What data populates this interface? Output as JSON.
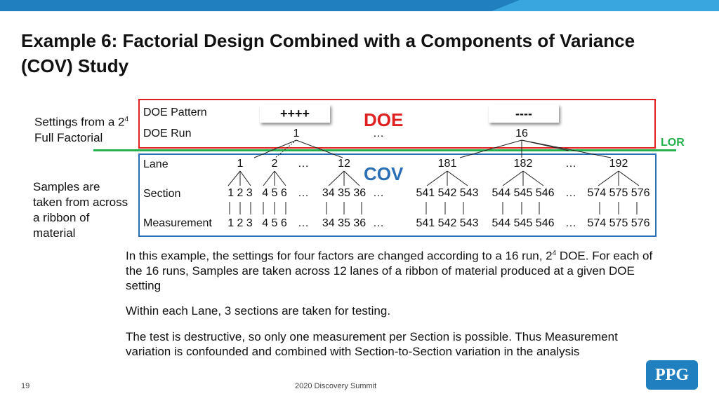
{
  "slide": {
    "title": "Example 6: Factorial Design Combined with a Components of Variance (COV) Study",
    "page_number": "19",
    "footer": "2020 Discovery Summit",
    "logo_text": "PPG"
  },
  "side_notes": {
    "settings_prefix": "Settings from a 2",
    "settings_exp": "4",
    "settings_suffix": " Full Factorial",
    "samples": "Samples are taken from across a ribbon of material"
  },
  "diagram": {
    "doe_label": "DOE",
    "cov_label": "COV",
    "lor_label": "LOR",
    "row_labels": {
      "pattern": "DOE Pattern",
      "run": "DOE Run",
      "lane": "Lane",
      "section": "Section",
      "measurement": "Measurement"
    },
    "patterns": [
      "++++",
      "----"
    ],
    "runs": [
      "1",
      "…",
      "16"
    ],
    "lanes": [
      "1",
      "2",
      "…",
      "12",
      "181",
      "182",
      "…",
      "192"
    ],
    "sections": [
      "1 2 3",
      "4 5 6",
      "…",
      "34 35 36",
      "…",
      "541 542 543",
      "544 545 546",
      "…",
      "574 575 576"
    ],
    "measurements": [
      "1 2 3",
      "4 5 6",
      "…",
      "34 35 36",
      "…",
      "541 542 543",
      "544 545 546",
      "…",
      "574 575 576"
    ]
  },
  "body": {
    "p1_prefix": "In this example, the settings for four factors are changed according to a 16 run, 2",
    "p1_exp": "4",
    "p1_suffix": " DOE. For each of the 16 runs, Samples are taken across 12 lanes of a ribbon of material produced at a given DOE setting",
    "p2": "Within each Lane, 3 sections are taken for testing.",
    "p3": "The test is destructive, so only one measurement per Section is possible.  Thus Measurement variation is confounded and combined with Section-to-Section variation in the analysis"
  },
  "colors": {
    "doe": "#e02020",
    "cov": "#2a6fb5",
    "lor": "#22b14c",
    "brand": "#1f7fbf"
  }
}
